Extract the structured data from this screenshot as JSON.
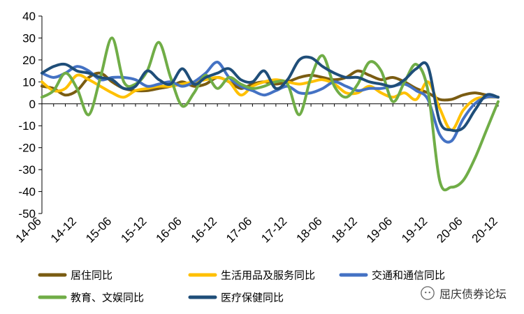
{
  "chart_data": {
    "type": "line",
    "title": "",
    "xlabel": "",
    "ylabel": "",
    "ylim": [
      -50,
      40
    ],
    "yticks": [
      40,
      30,
      20,
      10,
      0,
      -10,
      -20,
      -30,
      -40,
      -50
    ],
    "xticks": [
      "14-06",
      "14-12",
      "15-06",
      "15-12",
      "16-06",
      "16-12",
      "17-06",
      "17-12",
      "18-06",
      "18-12",
      "19-06",
      "19-12",
      "20-06",
      "20-12"
    ],
    "x_points": [
      "14-06",
      "14-08",
      "14-10",
      "14-12",
      "15-02",
      "15-04",
      "15-06",
      "15-08",
      "15-10",
      "15-12",
      "16-02",
      "16-04",
      "16-06",
      "16-08",
      "16-10",
      "16-12",
      "17-02",
      "17-04",
      "17-06",
      "17-08",
      "17-10",
      "17-12",
      "18-02",
      "18-04",
      "18-06",
      "18-08",
      "18-10",
      "18-12",
      "19-02",
      "19-04",
      "19-06",
      "19-08",
      "19-10",
      "19-12",
      "20-02",
      "20-04",
      "20-06",
      "20-08",
      "20-10",
      "20-12"
    ],
    "series": [
      {
        "name": "居住同比",
        "color": "#7a5c12",
        "values": [
          8,
          7,
          4,
          6,
          12,
          14,
          10,
          7,
          6,
          6,
          7,
          8,
          10,
          8,
          9,
          12,
          10,
          7,
          9,
          10,
          9,
          10,
          12,
          13,
          12,
          11,
          12,
          15,
          13,
          11,
          12,
          10,
          7,
          5,
          2,
          2,
          4,
          5,
          4,
          3
        ]
      },
      {
        "name": "生活用品及服务同比",
        "color": "#ffc000",
        "values": [
          10,
          6,
          7,
          13,
          11,
          8,
          5,
          3,
          6,
          7,
          8,
          8,
          9,
          10,
          11,
          12,
          10,
          4,
          8,
          10,
          11,
          10,
          9,
          10,
          11,
          9,
          5,
          5,
          8,
          5,
          3,
          5,
          2,
          10,
          -2,
          -12,
          -3,
          2,
          3,
          3
        ]
      },
      {
        "name": "交通和通信同比",
        "color": "#4472c4",
        "values": [
          14,
          12,
          14,
          17,
          15,
          11,
          12,
          12,
          11,
          8,
          9,
          10,
          8,
          10,
          14,
          19,
          12,
          8,
          6,
          4,
          6,
          8,
          5,
          5,
          7,
          10,
          8,
          6,
          7,
          7,
          8,
          9,
          6,
          2,
          -14,
          -17,
          -7,
          0,
          3,
          3
        ]
      },
      {
        "name": "教育、文娱同比",
        "color": "#70ad47",
        "values": [
          3,
          6,
          14,
          7,
          -5,
          12,
          30,
          10,
          9,
          15,
          28,
          12,
          -1,
          5,
          13,
          7,
          12,
          9,
          7,
          8,
          10,
          9,
          -5,
          12,
          22,
          8,
          3,
          9,
          19,
          15,
          1,
          10,
          18,
          6,
          -35,
          -38,
          -35,
          -25,
          -12,
          1
        ]
      },
      {
        "name": "医疗保健同比",
        "color": "#1f4e79",
        "values": [
          14,
          17,
          18,
          15,
          14,
          12,
          11,
          7,
          8,
          15,
          11,
          9,
          16,
          9,
          12,
          14,
          16,
          11,
          10,
          15,
          7,
          11,
          20,
          21,
          17,
          14,
          12,
          12,
          10,
          9,
          8,
          11,
          16,
          17,
          -8,
          -12,
          -11,
          -3,
          4,
          3
        ]
      }
    ],
    "legend_position": "bottom",
    "grid": false,
    "watermark": "屈庆债券论坛"
  }
}
